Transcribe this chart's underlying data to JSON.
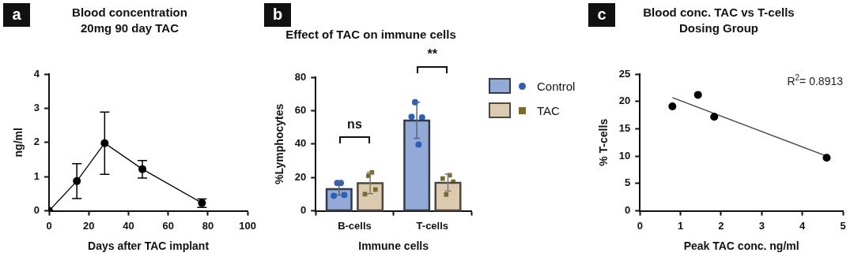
{
  "chart_data": [
    {
      "type": "line",
      "title": "Blood concentration",
      "subtitle": "20mg 90 day TAC",
      "xlabel": "Days after TAC implant",
      "ylabel": "ng/ml",
      "x": [
        0,
        14,
        28,
        47,
        77
      ],
      "values": [
        0,
        0.87,
        1.98,
        1.22,
        0.23
      ],
      "errors": [
        null,
        [
          0.36,
          1.38
        ],
        [
          1.07,
          2.89
        ],
        [
          0.96,
          1.47
        ],
        [
          0.1,
          0.35
        ]
      ],
      "color": "#000000",
      "marker": "circle",
      "xlim": [
        0,
        100
      ],
      "xticks": [
        0,
        20,
        40,
        60,
        80,
        100
      ],
      "ylim": [
        0,
        4
      ],
      "yticks": [
        0,
        1,
        2,
        3,
        4
      ],
      "grid": false,
      "legend": false,
      "annotations": [
        "a"
      ]
    },
    {
      "type": "bar",
      "title": "Effect of TAC on immune cells",
      "xlabel": "Immune cells",
      "ylabel": "%Lymphocytes",
      "categories": [
        "B-cells",
        "T-cells"
      ],
      "series": [
        {
          "name": "Control",
          "color": "#93a9d6",
          "values": [
            13,
            54
          ],
          "errors": [
            [
              9.5,
              17.3
            ],
            [
              43.5,
              65
            ]
          ]
        },
        {
          "name": "TAC",
          "color": "#dccbb0",
          "values": [
            16.5,
            16.8
          ],
          "errors": [
            [
              10.3,
              23
            ],
            [
              11.8,
              22
            ]
          ]
        },
        {
          "type": "scatter",
          "color": "#2e5fb8",
          "marker": "circle",
          "x": [
            "B-cells",
            "B-cells",
            "B-cells",
            "B-cells",
            "T-cells",
            "T-cells",
            "T-cells",
            "T-cells"
          ],
          "values": [
            9,
            16.7,
            16.7,
            9.5,
            56.3,
            65,
            39.7,
            55.9
          ]
        },
        {
          "type": "scatter",
          "color": "#7a6a2e",
          "marker": "square",
          "x": [
            "B-cells",
            "B-cells",
            "B-cells",
            "B-cells",
            "T-cells",
            "T-cells",
            "T-cells",
            "T-cells"
          ],
          "values": [
            10,
            21,
            23,
            12.7,
            19.3,
            9.8,
            21.3,
            17.5
          ]
        }
      ],
      "ylim": [
        0,
        80
      ],
      "yticks": [
        0,
        20,
        40,
        60,
        80
      ],
      "grid": false,
      "legend": "top right",
      "annotations": [
        "b",
        "ns",
        "**"
      ]
    },
    {
      "type": "scatter",
      "title": "Blood conc. TAC vs T-cells",
      "subtitle": "Dosing Group",
      "xlabel": "Peak TAC conc. ng/ml",
      "ylabel": "% T-cells",
      "series": [
        {
          "color": "#000000",
          "marker": "circle",
          "x": [
            0.8,
            1.43,
            1.83,
            4.6
          ],
          "values": [
            19.1,
            21.2,
            17.2,
            9.7
          ]
        },
        {
          "type": "line",
          "color": "#444444",
          "marker": "none",
          "x": [
            0.8,
            4.6
          ],
          "values": [
            20.7,
            10.0
          ]
        }
      ],
      "xlim": [
        0,
        5
      ],
      "xticks": [
        0,
        1,
        2,
        3,
        4,
        5
      ],
      "ylim": [
        0,
        25
      ],
      "yticks": [
        0,
        5,
        10,
        15,
        20,
        25
      ],
      "grid": false,
      "legend": false,
      "annotations": [
        "c",
        "R$^{2}$= 0.8913"
      ]
    }
  ]
}
